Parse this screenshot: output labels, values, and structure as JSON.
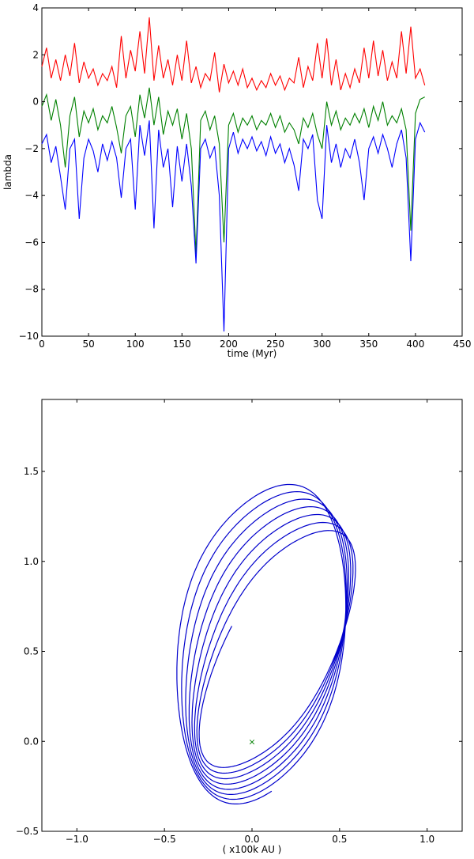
{
  "chart_data": [
    {
      "type": "line",
      "xlabel": "time (Myr)",
      "ylabel": "lambda",
      "xlim": [
        0,
        450
      ],
      "ylim": [
        -10,
        4
      ],
      "xticks": [
        0,
        50,
        100,
        150,
        200,
        250,
        300,
        350,
        400,
        450
      ],
      "yticks": [
        4,
        2,
        0,
        -2,
        -4,
        -6,
        -8,
        -10
      ],
      "grid": false,
      "series": [
        {
          "color": "#ff0000",
          "x": [
            0,
            5,
            10,
            15,
            20,
            25,
            30,
            35,
            40,
            45,
            50,
            55,
            60,
            65,
            70,
            75,
            80,
            85,
            90,
            95,
            100,
            105,
            110,
            115,
            120,
            125,
            130,
            135,
            140,
            145,
            150,
            155,
            160,
            165,
            170,
            175,
            180,
            185,
            190,
            195,
            200,
            205,
            210,
            215,
            220,
            225,
            230,
            235,
            240,
            245,
            250,
            255,
            260,
            265,
            270,
            275,
            280,
            285,
            290,
            295,
            300,
            305,
            310,
            315,
            320,
            325,
            330,
            335,
            340,
            345,
            350,
            355,
            360,
            365,
            370,
            375,
            380,
            385,
            390,
            395,
            400,
            405,
            410
          ],
          "y": [
            1.5,
            2.3,
            1.0,
            1.8,
            0.9,
            2.0,
            1.1,
            2.5,
            0.8,
            1.7,
            1.0,
            1.4,
            0.7,
            1.2,
            0.9,
            1.5,
            0.6,
            2.8,
            1.0,
            2.2,
            1.3,
            3.0,
            1.2,
            3.6,
            0.9,
            2.4,
            1.0,
            1.8,
            0.7,
            2.0,
            0.9,
            2.6,
            0.8,
            1.5,
            0.6,
            1.2,
            0.9,
            2.1,
            0.4,
            1.6,
            0.8,
            1.3,
            0.7,
            1.4,
            0.6,
            1.0,
            0.5,
            0.9,
            0.6,
            1.2,
            0.7,
            1.1,
            0.5,
            1.0,
            0.8,
            1.9,
            0.6,
            1.5,
            0.9,
            2.5,
            1.0,
            2.7,
            0.7,
            1.8,
            0.5,
            1.2,
            0.6,
            1.4,
            0.8,
            2.3,
            1.0,
            2.6,
            1.1,
            2.2,
            0.9,
            1.7,
            1.0,
            3.0,
            1.2,
            3.2,
            1.0,
            1.4,
            0.7
          ]
        },
        {
          "color": "#008000",
          "x": [
            0,
            5,
            10,
            15,
            20,
            25,
            30,
            35,
            40,
            45,
            50,
            55,
            60,
            65,
            70,
            75,
            80,
            85,
            90,
            95,
            100,
            105,
            110,
            115,
            120,
            125,
            130,
            135,
            140,
            145,
            150,
            155,
            160,
            165,
            170,
            175,
            180,
            185,
            190,
            195,
            200,
            205,
            210,
            215,
            220,
            225,
            230,
            235,
            240,
            245,
            250,
            255,
            260,
            265,
            270,
            275,
            280,
            285,
            290,
            295,
            300,
            305,
            310,
            315,
            320,
            325,
            330,
            335,
            340,
            345,
            350,
            355,
            360,
            365,
            370,
            375,
            380,
            385,
            390,
            395,
            400,
            405,
            410
          ],
          "y": [
            -0.2,
            0.3,
            -0.8,
            0.1,
            -1.0,
            -2.8,
            -0.6,
            0.2,
            -1.5,
            -0.4,
            -0.9,
            -0.3,
            -1.2,
            -0.6,
            -0.9,
            -0.2,
            -1.1,
            -2.2,
            -0.6,
            -0.2,
            -1.5,
            0.3,
            -0.7,
            0.6,
            -1.0,
            0.2,
            -1.4,
            -0.4,
            -1.0,
            -0.3,
            -1.6,
            -0.5,
            -2.0,
            -6.5,
            -0.8,
            -0.4,
            -1.2,
            -0.6,
            -1.8,
            -6.0,
            -1.0,
            -0.5,
            -1.3,
            -0.7,
            -1.0,
            -0.6,
            -1.2,
            -0.8,
            -1.0,
            -0.5,
            -1.1,
            -0.6,
            -1.3,
            -0.9,
            -1.2,
            -1.8,
            -0.7,
            -1.1,
            -0.5,
            -1.4,
            -2.0,
            0.0,
            -1.0,
            -0.4,
            -1.2,
            -0.7,
            -1.0,
            -0.5,
            -0.9,
            -0.3,
            -1.1,
            -0.2,
            -0.8,
            0.0,
            -1.0,
            -0.6,
            -0.9,
            -0.3,
            -1.2,
            -5.5,
            -0.5,
            0.1,
            0.2
          ]
        },
        {
          "color": "#0000ff",
          "x": [
            0,
            5,
            10,
            15,
            20,
            25,
            30,
            35,
            40,
            45,
            50,
            55,
            60,
            65,
            70,
            75,
            80,
            85,
            90,
            95,
            100,
            105,
            110,
            115,
            120,
            125,
            130,
            135,
            140,
            145,
            150,
            155,
            160,
            165,
            170,
            175,
            180,
            185,
            190,
            195,
            200,
            205,
            210,
            215,
            220,
            225,
            230,
            235,
            240,
            245,
            250,
            255,
            260,
            265,
            270,
            275,
            280,
            285,
            290,
            295,
            300,
            305,
            310,
            315,
            320,
            325,
            330,
            335,
            340,
            345,
            350,
            355,
            360,
            365,
            370,
            375,
            380,
            385,
            390,
            395,
            400,
            405,
            410
          ],
          "y": [
            -1.8,
            -1.4,
            -2.6,
            -1.9,
            -3.2,
            -4.6,
            -2.0,
            -1.6,
            -5.0,
            -2.4,
            -1.6,
            -2.1,
            -3.0,
            -1.8,
            -2.5,
            -1.7,
            -2.4,
            -4.1,
            -2.0,
            -1.6,
            -4.6,
            -1.0,
            -2.3,
            -0.8,
            -5.4,
            -1.2,
            -2.8,
            -2.0,
            -4.5,
            -1.9,
            -3.4,
            -1.8,
            -3.6,
            -6.9,
            -2.0,
            -1.6,
            -2.4,
            -1.9,
            -4.0,
            -9.8,
            -2.0,
            -1.3,
            -2.2,
            -1.6,
            -2.0,
            -1.5,
            -2.1,
            -1.7,
            -2.3,
            -1.5,
            -2.2,
            -1.8,
            -2.6,
            -2.0,
            -2.7,
            -3.8,
            -1.6,
            -2.0,
            -1.4,
            -4.2,
            -5.0,
            -1.0,
            -2.6,
            -1.8,
            -2.8,
            -2.0,
            -2.4,
            -1.6,
            -2.6,
            -4.2,
            -2.0,
            -1.5,
            -2.2,
            -1.4,
            -2.0,
            -2.8,
            -1.8,
            -1.2,
            -2.4,
            -6.8,
            -1.6,
            -0.9,
            -1.3
          ]
        }
      ]
    },
    {
      "type": "line",
      "xlabel": "( x100k AU )",
      "ylabel": "",
      "xlim": [
        -1.2,
        1.2
      ],
      "ylim": [
        -0.5,
        1.9
      ],
      "xticks": [
        -1.0,
        -0.5,
        0.0,
        0.5,
        1.0
      ],
      "xtick_labels": [
        "−1.0",
        "−0.5",
        "0.0",
        "0.5",
        "1.0"
      ],
      "yticks": [
        -0.5,
        0.0,
        0.5,
        1.0,
        1.5
      ],
      "ytick_labels": [
        "−0.5",
        "0.0",
        "0.5",
        "1.0",
        "1.5"
      ],
      "grid": false,
      "marker": {
        "x": 0.0,
        "y": 0.0,
        "symbol": "×",
        "color": "#008000"
      },
      "orbit": {
        "color": "#0000cc",
        "start": [
          0.11,
          0.6
        ],
        "center_start": [
          0.15,
          0.5
        ],
        "center_end": [
          0.05,
          0.55
        ],
        "a_start": 0.3,
        "a_end": 0.48,
        "b_start": 0.72,
        "b_end": 0.9,
        "tilt_start_deg": 28,
        "tilt_end_deg": 6,
        "loops": 7.3
      }
    }
  ]
}
